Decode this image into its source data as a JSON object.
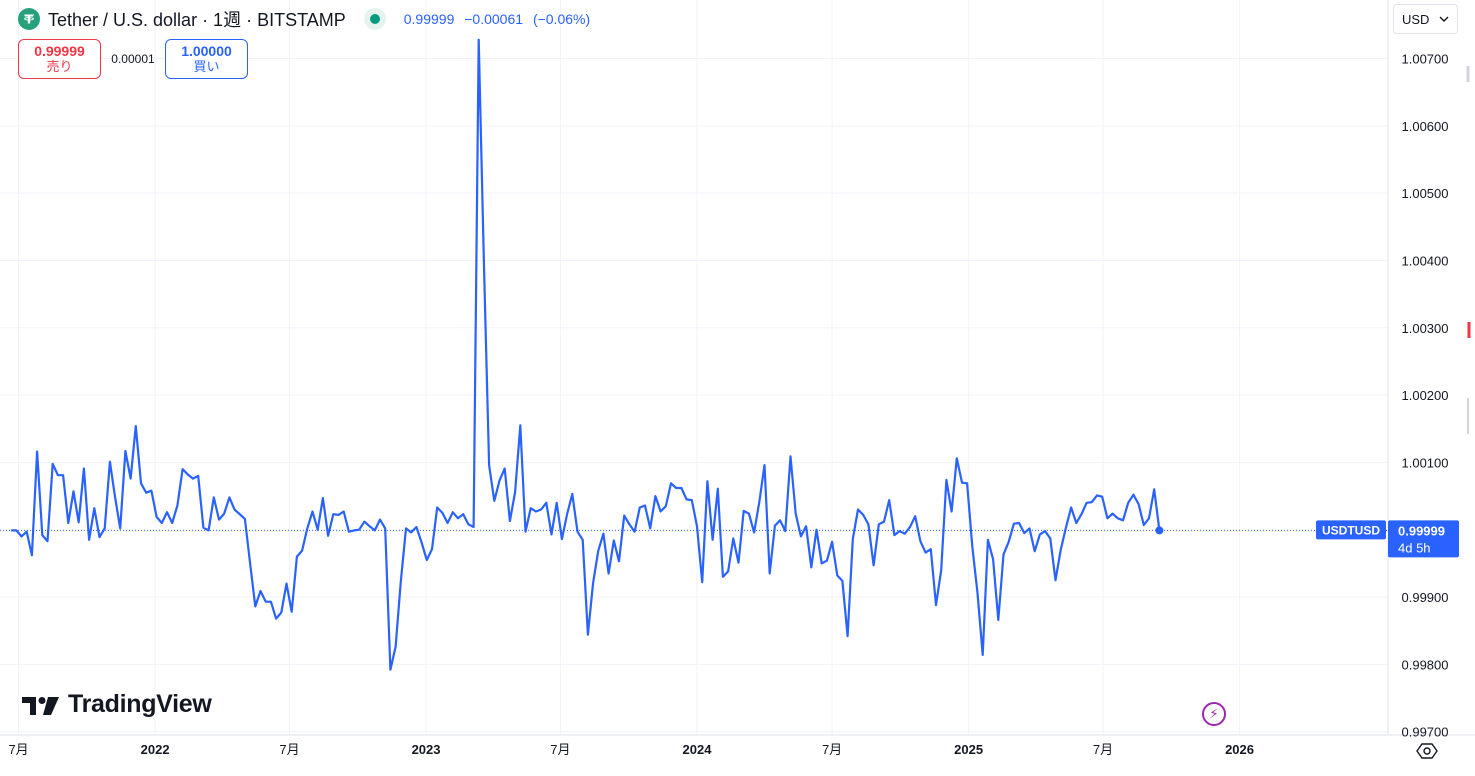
{
  "header": {
    "title": "Tether / U.S. dollar · 1週 · BITSTAMP",
    "price": "0.99999",
    "change": "−0.00061",
    "change_pct": "(−0.06%)"
  },
  "trade": {
    "sell_price": "0.99999",
    "sell_label": "売り",
    "spread": "0.00001",
    "buy_price": "1.00000",
    "buy_label": "買い"
  },
  "currency": {
    "label": "USD",
    "icon": "chevron-down-icon"
  },
  "branding": {
    "logo_text": "TradingView"
  },
  "price_tag": {
    "symbol": "USDTUSD",
    "price": "0.99999",
    "countdown": "4d 5h"
  },
  "colors": {
    "line": "#2962ff",
    "sell": "#f23645",
    "buy": "#2962ff",
    "grid": "#f0f3fa",
    "price_line": "#2962ff",
    "tag_bg": "#2962ff",
    "tether_logo": "#26a17b",
    "live_dot": "#089981",
    "bolt": "#9c27b0"
  },
  "chart_data": {
    "type": "line",
    "title": "Tether / U.S. dollar · 1週 · BITSTAMP",
    "series": [
      {
        "name": "USDTUSD",
        "x_start": "2021-06-21",
        "interval_days": 7,
        "values": [
          0.99999,
          0.99999,
          0.9999,
          0.99997,
          0.99962,
          1.00116,
          0.99992,
          0.99983,
          1.00098,
          1.00081,
          1.00081,
          1.0001,
          1.00057,
          1.00011,
          1.00091,
          0.99985,
          1.00032,
          0.99989,
          1.00002,
          1.00101,
          1.00049,
          1.00002,
          1.00117,
          1.00076,
          1.00154,
          1.00069,
          1.00055,
          1.00058,
          1.00019,
          1.0001,
          1.00026,
          1.0001,
          1.00036,
          1.0009,
          1.00082,
          1.00076,
          1.0008,
          1.00003,
          0.99999,
          1.00048,
          1.00015,
          1.00024,
          1.00048,
          1.0003,
          1.00023,
          1.00016,
          0.9995,
          0.99886,
          0.99909,
          0.99893,
          0.99893,
          0.99868,
          0.99877,
          0.9992,
          0.99878,
          0.9996,
          0.99969,
          1.00002,
          1.00027,
          1.0,
          1.00047,
          0.99991,
          1.00023,
          1.00022,
          1.00027,
          0.99997,
          0.99999,
          1.0,
          1.00012,
          1.00005,
          0.99999,
          1.00015,
          1.00002,
          0.99792,
          0.99826,
          0.99923,
          1.00002,
          0.99996,
          1.00004,
          0.99981,
          0.99955,
          0.99971,
          1.00033,
          1.00025,
          1.0001,
          1.00026,
          1.00017,
          1.00023,
          1.00008,
          1.00004,
          1.00728,
          1.00397,
          1.00096,
          1.00043,
          1.00073,
          1.00091,
          1.00013,
          1.00056,
          1.00155,
          0.99997,
          1.00032,
          1.00027,
          1.0003,
          1.0004,
          0.99993,
          1.0004,
          0.99986,
          1.00023,
          1.00053,
          0.99997,
          0.99985,
          0.99844,
          0.99921,
          0.99969,
          0.99994,
          0.99935,
          0.99984,
          0.99953,
          1.00021,
          1.00008,
          0.99997,
          1.00033,
          1.00036,
          1.00002,
          1.0005,
          1.00027,
          1.00035,
          1.00069,
          1.00062,
          1.00062,
          1.00045,
          1.00044,
          1.00005,
          0.99922,
          1.00072,
          0.99985,
          1.00061,
          0.9993,
          0.99938,
          0.99987,
          0.99951,
          1.00028,
          1.00024,
          0.99996,
          1.00041,
          1.00096,
          0.99935,
          1.00006,
          1.00014,
          0.99998,
          1.00109,
          1.00024,
          0.9999,
          1.00005,
          0.99944,
          1.0,
          0.9995,
          0.99954,
          0.99982,
          0.99932,
          0.99924,
          0.99842,
          0.99986,
          1.0003,
          1.00022,
          1.00008,
          0.99947,
          1.00008,
          1.00012,
          1.00044,
          0.99992,
          0.99998,
          0.99994,
          1.00004,
          1.0002,
          0.99983,
          0.99966,
          0.99971,
          0.99888,
          0.9994,
          1.00074,
          1.00027,
          1.00106,
          1.0007,
          1.00069,
          0.99975,
          0.99906,
          0.99814,
          0.99985,
          0.99956,
          0.99866,
          0.99963,
          0.99982,
          1.00009,
          1.0001,
          0.99995,
          1.00002,
          0.99968,
          0.99993,
          0.99998,
          0.99987,
          0.99925,
          0.9997,
          1.00003,
          1.00033,
          1.0001,
          1.00023,
          1.0004,
          1.00041,
          1.00051,
          1.00049,
          1.00017,
          1.00024,
          1.00017,
          1.00014,
          1.0004,
          1.00052,
          1.00038,
          1.00007,
          1.00017,
          1.0006,
          0.99999
        ]
      }
    ],
    "x_range": [
      "2021-06-06",
      "2026-07-20"
    ],
    "ylim": [
      0.99695,
      1.00787
    ],
    "y_ticks": [
      "1.00700",
      "1.00600",
      "1.00500",
      "1.00400",
      "1.00300",
      "1.00200",
      "1.00100",
      "0.99900",
      "0.99800",
      "0.99700"
    ],
    "y_tick_values": [
      1.007,
      1.006,
      1.005,
      1.004,
      1.003,
      1.002,
      1.001,
      0.999,
      0.998,
      0.997
    ],
    "x_ticks": [
      {
        "label": "7月",
        "date": "2021-07-01",
        "bold": false
      },
      {
        "label": "2022",
        "date": "2022-01-01",
        "bold": true
      },
      {
        "label": "7月",
        "date": "2022-07-01",
        "bold": false
      },
      {
        "label": "2023",
        "date": "2023-01-01",
        "bold": true
      },
      {
        "label": "7月",
        "date": "2023-07-01",
        "bold": false
      },
      {
        "label": "2024",
        "date": "2024-01-01",
        "bold": true
      },
      {
        "label": "7月",
        "date": "2024-07-01",
        "bold": false
      },
      {
        "label": "2025",
        "date": "2025-01-01",
        "bold": true
      },
      {
        "label": "7月",
        "date": "2025-07-01",
        "bold": false
      },
      {
        "label": "2026",
        "date": "2026-01-01",
        "bold": true
      }
    ],
    "last_price": 0.99999,
    "grid": true,
    "xlabel": "",
    "ylabel": ""
  }
}
